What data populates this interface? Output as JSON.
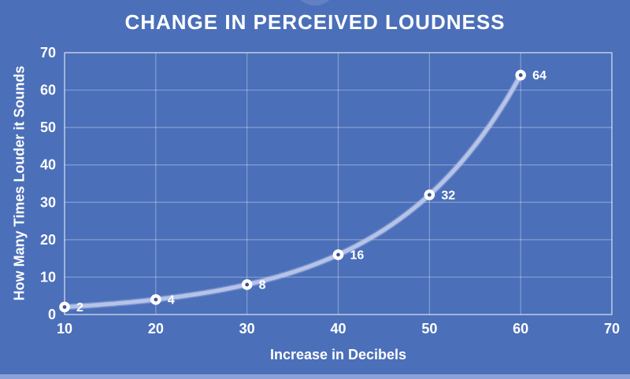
{
  "chart_data": {
    "type": "line",
    "title": "CHANGE IN PERCEIVED LOUDNESS",
    "xlabel": "Increase in Decibels",
    "ylabel": "How Many Times Louder it Sounds",
    "x": [
      10,
      20,
      30,
      40,
      50,
      60
    ],
    "y": [
      2,
      4,
      8,
      16,
      32,
      64
    ],
    "point_labels": [
      "2",
      "4",
      "8",
      "16",
      "32",
      "64"
    ],
    "xlim": [
      10,
      70
    ],
    "ylim": [
      0,
      70
    ],
    "x_ticks": [
      10,
      20,
      30,
      40,
      50,
      60,
      70
    ],
    "y_ticks": [
      0,
      10,
      20,
      30,
      40,
      50,
      60,
      70
    ],
    "grid": true,
    "legend": false,
    "curve_style": "smooth exponential (doubling per 10 dB)",
    "marker_style": "white ring with dark center",
    "colors": {
      "background": "#4b6fb9",
      "grid": "rgba(255,255,255,0.33)",
      "plot_border": "rgba(255,255,255,0.5)",
      "line": "#b6c3e8",
      "line_glow": "rgba(190,202,235,0.35)",
      "marker": "#ffffff",
      "marker_center": "#3f5190",
      "text": "#ffffff",
      "bottom_strip": "#8ca2d5",
      "top_arc": "rgba(255,255,255,0.13)"
    }
  }
}
